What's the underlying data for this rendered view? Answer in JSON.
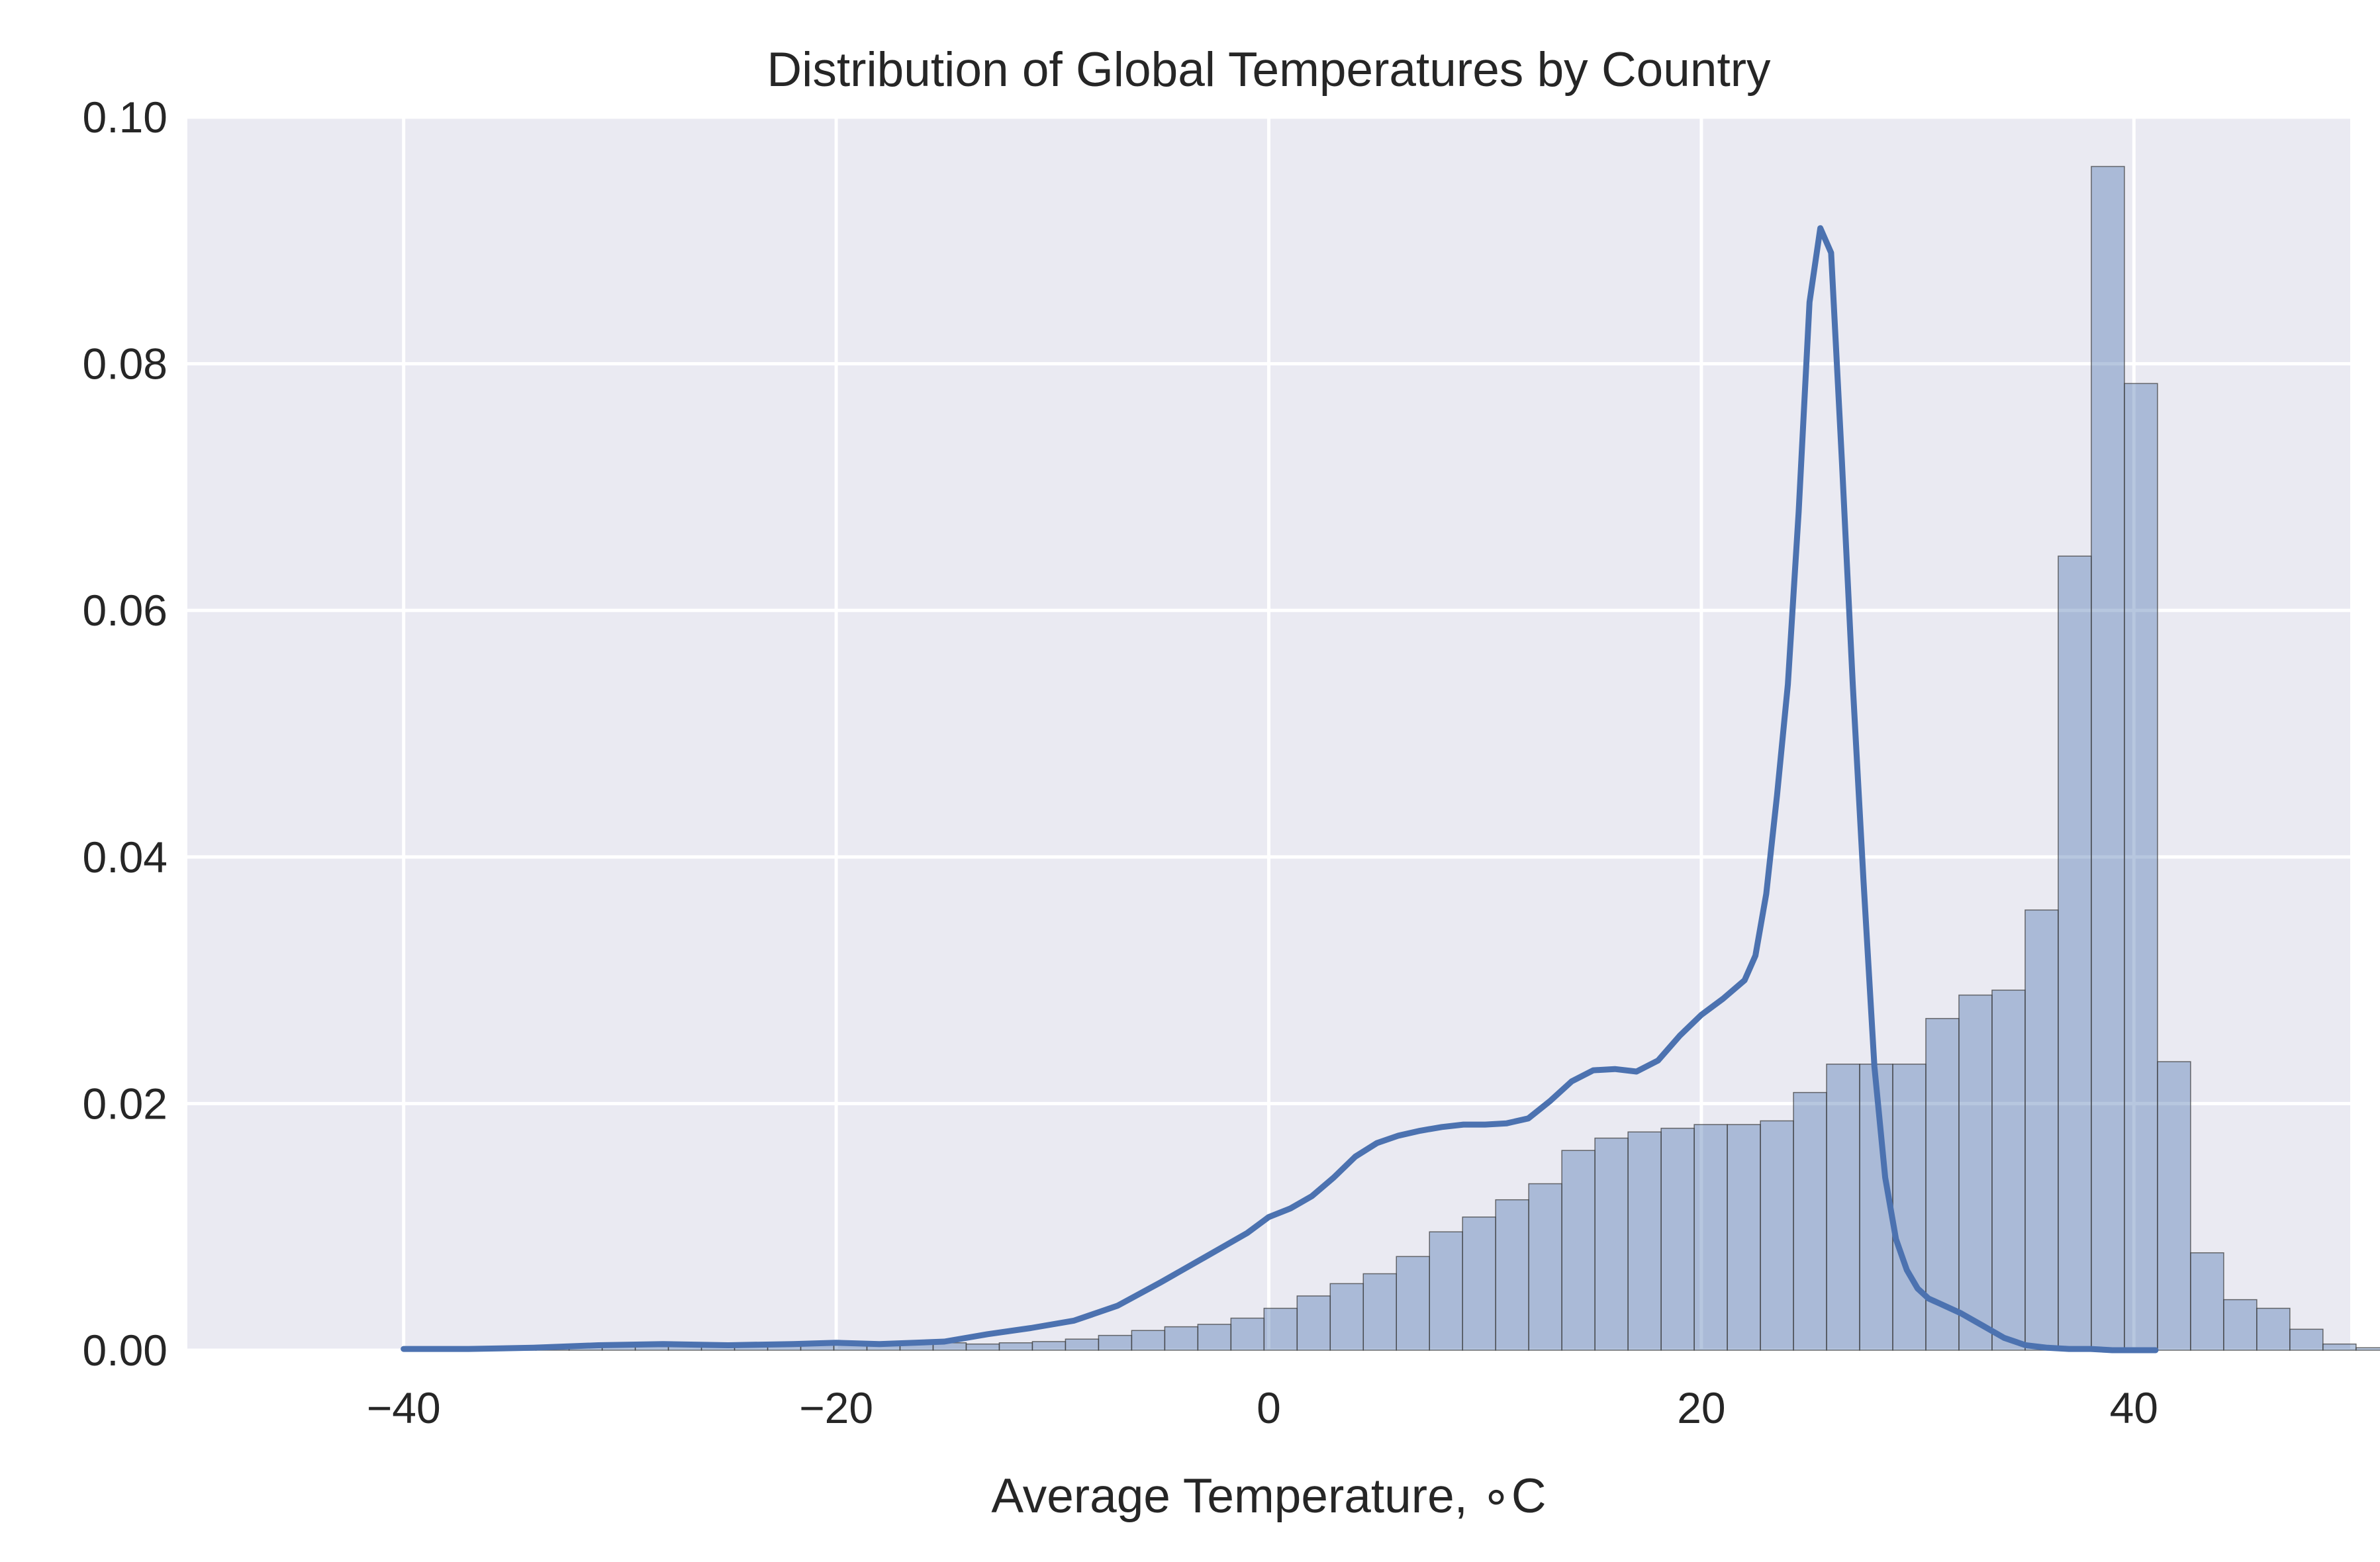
{
  "chart_data": {
    "type": "bar",
    "title": "Distribution of Global Temperatures by Country",
    "xlabel": "Average Temperature, ∘C",
    "ylabel": "",
    "xlim": [
      -50,
      50
    ],
    "ylim": [
      0,
      0.1
    ],
    "x_ticks": [
      -40,
      -20,
      0,
      20,
      40
    ],
    "x_tick_labels": [
      "−40",
      "−20",
      "0",
      "20",
      "40"
    ],
    "y_ticks": [
      0,
      0.02,
      0.04,
      0.06,
      0.08,
      0.1
    ],
    "y_tick_labels": [
      "0.00",
      "0.02",
      "0.04",
      "0.06",
      "0.08",
      "0.10"
    ],
    "grid": true,
    "histogram": {
      "bin_start": -40,
      "bin_width": 1.53,
      "values": [
        0.0001,
        0.0001,
        0.0001,
        0.0002,
        0.0002,
        0.0003,
        0.0003,
        0.0004,
        0.0004,
        0.0004,
        0.0004,
        0.0004,
        0.0005,
        0.0005,
        0.0006,
        0.0006,
        0.0006,
        0.0005,
        0.0006,
        0.0007,
        0.0009,
        0.0012,
        0.0016,
        0.0019,
        0.0021,
        0.0026,
        0.0034,
        0.0044,
        0.0054,
        0.0062,
        0.0076,
        0.0096,
        0.0108,
        0.0122,
        0.0135,
        0.0162,
        0.0172,
        0.0177,
        0.018,
        0.0183,
        0.0183,
        0.0186,
        0.0209,
        0.0232,
        0.0232,
        0.0232,
        0.0269,
        0.0288,
        0.0292,
        0.0357,
        0.0644,
        0.096,
        0.0784,
        0.0234,
        0.0079,
        0.0041,
        0.0034,
        0.0017,
        0.0005,
        0.0002
      ]
    },
    "series": [
      {
        "type": "line",
        "color": "#4c72b0",
        "x": [
          -40,
          -37,
          -34,
          -31,
          -28,
          -25,
          -22,
          -20,
          -18,
          -15,
          -13,
          -11,
          -9,
          -7,
          -5,
          -3,
          -1,
          0,
          1,
          2,
          3,
          4,
          5,
          6,
          7,
          8,
          9,
          10,
          11,
          12,
          13,
          14,
          15,
          16,
          17,
          18,
          19,
          20,
          21,
          22,
          22.5,
          23,
          23.5,
          24,
          24.5,
          25,
          25.5,
          26,
          26.5,
          27,
          27.5,
          28,
          28.5,
          29,
          29.5,
          30,
          30.5,
          31,
          32,
          33,
          34,
          35,
          36,
          37,
          38,
          39,
          40,
          41
        ],
        "y": [
          0.0001,
          0.0001,
          0.0002,
          0.0004,
          0.0005,
          0.0004,
          0.0005,
          0.0006,
          0.0005,
          0.0007,
          0.0013,
          0.0018,
          0.0024,
          0.0036,
          0.0055,
          0.0075,
          0.0095,
          0.0108,
          0.0115,
          0.0125,
          0.014,
          0.0157,
          0.0168,
          0.0174,
          0.0178,
          0.0181,
          0.0183,
          0.0183,
          0.0184,
          0.0188,
          0.0202,
          0.0218,
          0.0227,
          0.0228,
          0.0226,
          0.0235,
          0.0255,
          0.0272,
          0.0285,
          0.03,
          0.032,
          0.037,
          0.045,
          0.054,
          0.068,
          0.085,
          0.091,
          0.089,
          0.072,
          0.054,
          0.038,
          0.023,
          0.014,
          0.009,
          0.0065,
          0.005,
          0.0042,
          0.0038,
          0.003,
          0.002,
          0.001,
          0.0004,
          0.0002,
          0.0001,
          0.0001,
          0.0,
          0.0,
          0.0
        ]
      }
    ]
  }
}
